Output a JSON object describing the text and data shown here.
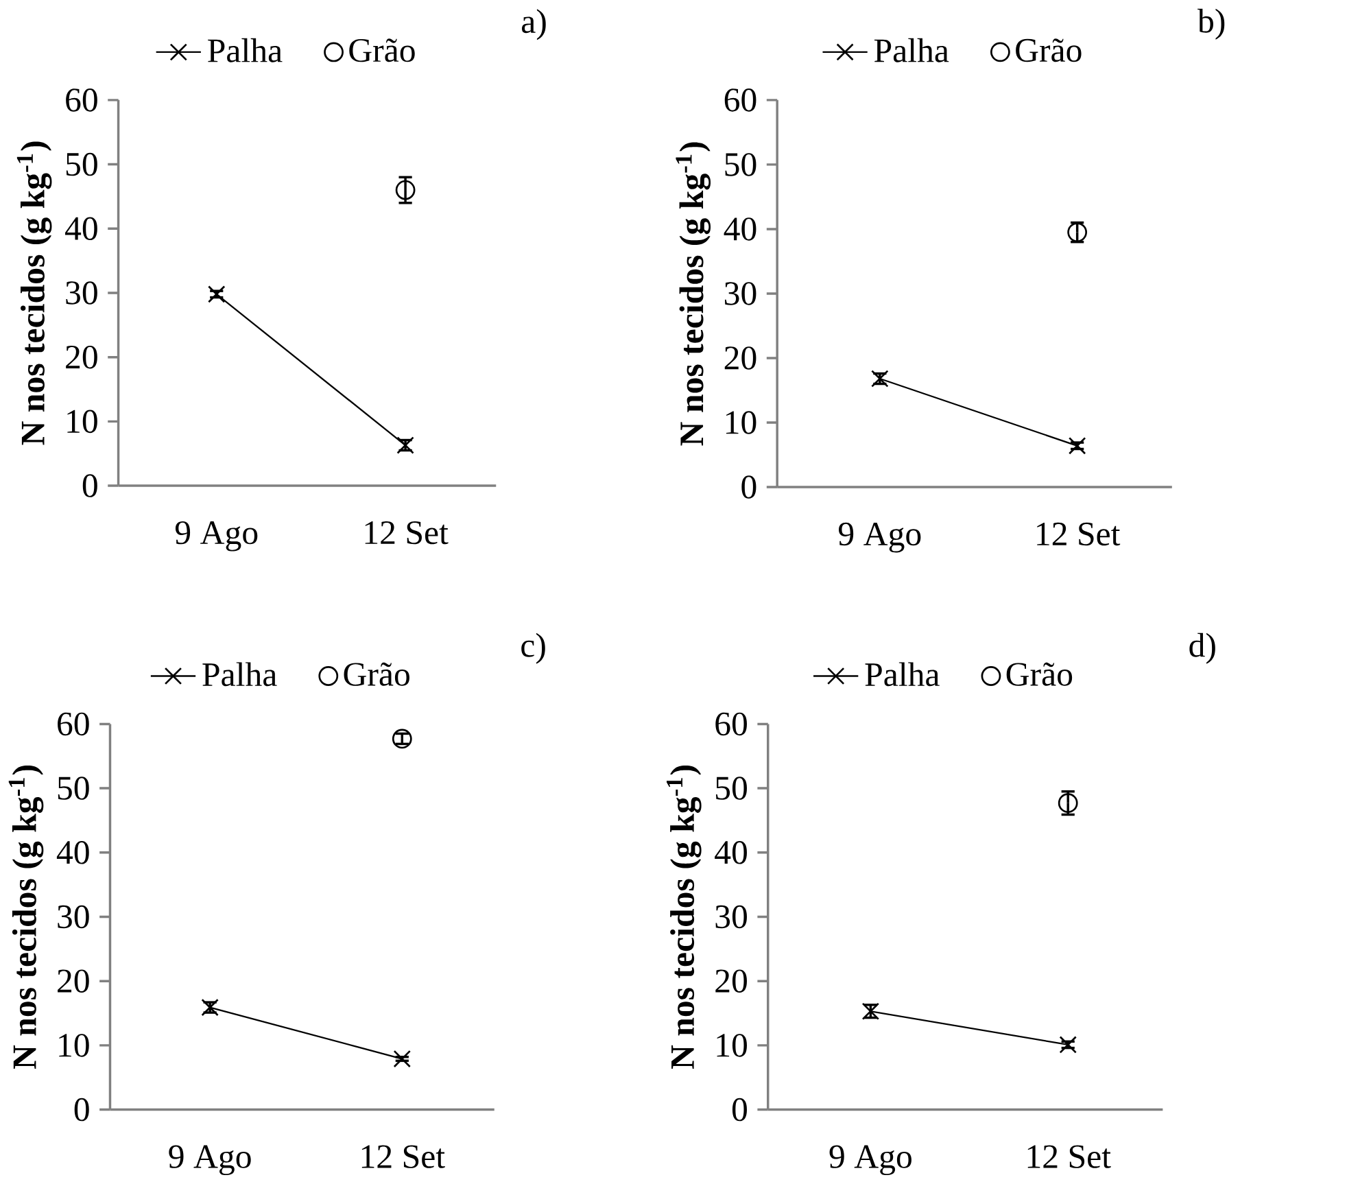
{
  "chart_data": [
    {
      "type": "line",
      "annotations": [
        "a)"
      ],
      "ylabel": "N nos tecidos (g kg$^{-1}$)",
      "categories": [
        "9 Ago",
        "12 Set"
      ],
      "ylim": [
        0,
        60
      ],
      "yticks": [
        0,
        10,
        20,
        30,
        40,
        50,
        60
      ],
      "legend": "top",
      "series": [
        {
          "name": "Palha",
          "marker": "cross",
          "color": "#000000",
          "values": [
            29.8,
            6.3
          ],
          "errors": [
            0.5,
            0.8
          ]
        },
        {
          "name": "Grão",
          "type": "scatter",
          "marker": "circle",
          "color": "#000000",
          "values": [
            null,
            46
          ],
          "errors": [
            null,
            2
          ]
        }
      ]
    },
    {
      "type": "line",
      "annotations": [
        "b)"
      ],
      "ylabel": "N nos tecidos (g kg$^{-1}$)",
      "categories": [
        "9 Ago",
        "12 Set"
      ],
      "ylim": [
        0,
        60
      ],
      "yticks": [
        0,
        10,
        20,
        30,
        40,
        50,
        60
      ],
      "legend": "top",
      "series": [
        {
          "name": "Palha",
          "marker": "cross",
          "color": "#000000",
          "values": [
            16.8,
            6.4
          ],
          "errors": [
            0.8,
            0.5
          ]
        },
        {
          "name": "Grão",
          "type": "scatter",
          "marker": "circle",
          "color": "#000000",
          "values": [
            null,
            39.5
          ],
          "errors": [
            null,
            1.5
          ]
        }
      ]
    },
    {
      "type": "line",
      "annotations": [
        "c)"
      ],
      "ylabel": "N nos tecidos (g kg$^{-1}$)",
      "categories": [
        "9 Ago",
        "12 Set"
      ],
      "ylim": [
        0,
        60
      ],
      "yticks": [
        0,
        10,
        20,
        30,
        40,
        50,
        60
      ],
      "legend": "top",
      "series": [
        {
          "name": "Palha",
          "marker": "cross",
          "color": "#000000",
          "values": [
            15.9,
            7.9
          ],
          "errors": [
            0.8,
            0.3
          ]
        },
        {
          "name": "Grão",
          "type": "scatter",
          "marker": "circle",
          "color": "#000000",
          "values": [
            null,
            57.7
          ],
          "errors": [
            null,
            0.8
          ]
        }
      ]
    },
    {
      "type": "line",
      "annotations": [
        "d)"
      ],
      "ylabel": "N nos tecidos (g kg$^{-1}$)",
      "categories": [
        "9 Ago",
        "12 Set"
      ],
      "ylim": [
        0,
        60
      ],
      "yticks": [
        0,
        10,
        20,
        30,
        40,
        50,
        60
      ],
      "legend": "top",
      "series": [
        {
          "name": "Palha",
          "marker": "cross",
          "color": "#000000",
          "values": [
            15.3,
            10.1
          ],
          "errors": [
            1.0,
            0.5
          ]
        },
        {
          "name": "Grão",
          "type": "scatter",
          "marker": "circle",
          "color": "#000000",
          "values": [
            null,
            47.7
          ],
          "errors": [
            null,
            1.8
          ]
        }
      ]
    }
  ]
}
